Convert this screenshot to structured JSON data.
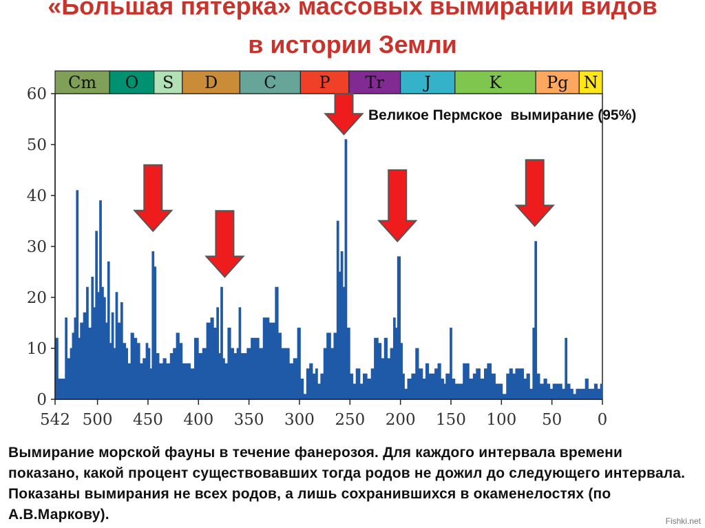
{
  "title_line1": "«Большая пятерка» массовых вымираний видов",
  "title_line2": "в истории Земли",
  "annotation": "Великое Пермское  вымирание (95%)",
  "caption": "Вымирание морской фауны в течение фанерозоя. Для каждого интервала времени показано, какой процент существовавших тогда родов не дожил до следующего интервала. Показаны вымирания не всех родов, а лишь сохранившихся в окаменелостях (по А.В.Маркову).",
  "watermark": "Fishki.net",
  "colors": {
    "title": "#c8342c",
    "bars": "#1f5aa8",
    "arrow": "#ee1c1c",
    "arrow_edge": "#555555"
  },
  "chart_data": {
    "type": "area",
    "x_reversed": true,
    "xlim": [
      542,
      0
    ],
    "ylim": [
      0,
      60
    ],
    "x_ticks": [
      542,
      500,
      450,
      400,
      350,
      300,
      250,
      200,
      150,
      100,
      50,
      0
    ],
    "y_ticks": [
      0,
      10,
      20,
      30,
      40,
      50,
      60
    ],
    "periods": [
      {
        "label": "Cm",
        "start": 542,
        "end": 488,
        "color": "#7fa056"
      },
      {
        "label": "O",
        "start": 488,
        "end": 444,
        "color": "#009270"
      },
      {
        "label": "S",
        "start": 444,
        "end": 416,
        "color": "#b3e1b6"
      },
      {
        "label": "D",
        "start": 416,
        "end": 359,
        "color": "#cb8c37"
      },
      {
        "label": "C",
        "start": 359,
        "end": 299,
        "color": "#67a599"
      },
      {
        "label": "P",
        "start": 299,
        "end": 251,
        "color": "#f04028"
      },
      {
        "label": "Tr",
        "start": 251,
        "end": 200,
        "color": "#812b92"
      },
      {
        "label": "J",
        "start": 200,
        "end": 146,
        "color": "#34b2c9"
      },
      {
        "label": "K",
        "start": 146,
        "end": 66,
        "color": "#7fc64e"
      },
      {
        "label": "Pg",
        "start": 66,
        "end": 23,
        "color": "#fda75f"
      },
      {
        "label": "N",
        "start": 23,
        "end": 0,
        "color": "#ffe619"
      }
    ],
    "series": [
      {
        "values": [
          [
            542,
            12
          ],
          [
            539,
            4
          ],
          [
            534,
            4
          ],
          [
            532,
            16
          ],
          [
            530,
            8
          ],
          [
            527,
            10
          ],
          [
            525,
            13
          ],
          [
            523,
            16
          ],
          [
            521,
            41
          ],
          [
            519,
            12
          ],
          [
            517,
            15
          ],
          [
            514,
            17
          ],
          [
            511,
            22
          ],
          [
            509,
            14
          ],
          [
            506,
            24
          ],
          [
            504,
            18
          ],
          [
            502,
            33
          ],
          [
            500,
            21
          ],
          [
            498,
            39
          ],
          [
            496,
            22
          ],
          [
            494,
            20
          ],
          [
            492,
            15
          ],
          [
            490,
            27
          ],
          [
            488,
            11
          ],
          [
            486,
            17
          ],
          [
            484,
            10
          ],
          [
            482,
            21
          ],
          [
            480,
            15
          ],
          [
            477,
            19
          ],
          [
            475,
            11
          ],
          [
            472,
            10
          ],
          [
            470,
            7
          ],
          [
            467,
            13
          ],
          [
            464,
            12
          ],
          [
            461,
            11
          ],
          [
            458,
            7
          ],
          [
            455,
            8
          ],
          [
            452,
            11
          ],
          [
            450,
            10
          ],
          [
            448,
            6
          ],
          [
            446,
            29
          ],
          [
            444,
            26
          ],
          [
            442,
            9
          ],
          [
            439,
            7
          ],
          [
            435,
            8
          ],
          [
            432,
            7
          ],
          [
            428,
            9
          ],
          [
            425,
            10
          ],
          [
            422,
            13
          ],
          [
            419,
            11
          ],
          [
            416,
            7
          ],
          [
            412,
            7
          ],
          [
            408,
            6
          ],
          [
            404,
            12
          ],
          [
            400,
            9
          ],
          [
            396,
            10
          ],
          [
            392,
            15
          ],
          [
            388,
            16
          ],
          [
            385,
            14
          ],
          [
            382,
            18
          ],
          [
            380,
            9
          ],
          [
            378,
            22
          ],
          [
            376,
            8
          ],
          [
            374,
            7
          ],
          [
            371,
            14
          ],
          [
            368,
            10
          ],
          [
            365,
            9
          ],
          [
            362,
            10
          ],
          [
            360,
            18
          ],
          [
            358,
            9
          ],
          [
            355,
            9
          ],
          [
            352,
            10
          ],
          [
            348,
            12
          ],
          [
            344,
            12
          ],
          [
            340,
            10
          ],
          [
            336,
            16
          ],
          [
            333,
            16
          ],
          [
            330,
            15
          ],
          [
            327,
            15
          ],
          [
            324,
            22
          ],
          [
            321,
            13
          ],
          [
            318,
            10
          ],
          [
            314,
            10
          ],
          [
            310,
            7
          ],
          [
            306,
            8
          ],
          [
            302,
            14
          ],
          [
            299,
            4
          ],
          [
            296,
            1
          ],
          [
            293,
            6
          ],
          [
            290,
            7
          ],
          [
            287,
            5
          ],
          [
            284,
            6
          ],
          [
            282,
            3
          ],
          [
            279,
            5
          ],
          [
            276,
            10
          ],
          [
            273,
            13
          ],
          [
            269,
            10
          ],
          [
            266,
            13
          ],
          [
            263,
            35
          ],
          [
            261,
            25
          ],
          [
            259,
            29
          ],
          [
            257,
            22
          ],
          [
            255,
            51
          ],
          [
            253,
            14
          ],
          [
            250,
            5
          ],
          [
            247,
            3
          ],
          [
            244,
            6
          ],
          [
            240,
            3
          ],
          [
            237,
            5
          ],
          [
            233,
            4
          ],
          [
            229,
            6
          ],
          [
            226,
            12
          ],
          [
            222,
            11
          ],
          [
            219,
            8
          ],
          [
            216,
            12
          ],
          [
            213,
            8
          ],
          [
            210,
            10
          ],
          [
            207,
            16
          ],
          [
            205,
            14
          ],
          [
            203,
            28
          ],
          [
            200,
            11
          ],
          [
            198,
            5
          ],
          [
            196,
            2
          ],
          [
            193,
            4
          ],
          [
            189,
            5
          ],
          [
            185,
            10
          ],
          [
            182,
            6
          ],
          [
            178,
            4
          ],
          [
            175,
            7
          ],
          [
            172,
            5
          ],
          [
            169,
            5
          ],
          [
            166,
            6
          ],
          [
            163,
            7
          ],
          [
            160,
            4
          ],
          [
            157,
            3
          ],
          [
            155,
            5
          ],
          [
            151,
            14
          ],
          [
            149,
            4
          ],
          [
            146,
            3
          ],
          [
            142,
            3
          ],
          [
            138,
            7
          ],
          [
            135,
            7
          ],
          [
            132,
            4
          ],
          [
            128,
            5
          ],
          [
            125,
            6
          ],
          [
            121,
            4
          ],
          [
            117,
            6
          ],
          [
            114,
            7
          ],
          [
            110,
            5
          ],
          [
            106,
            3
          ],
          [
            103,
            3
          ],
          [
            99,
            1
          ],
          [
            95,
            5
          ],
          [
            92,
            6
          ],
          [
            89,
            5
          ],
          [
            86,
            6
          ],
          [
            82,
            6
          ],
          [
            78,
            4
          ],
          [
            75,
            5
          ],
          [
            72,
            2
          ],
          [
            69,
            14
          ],
          [
            67,
            31
          ],
          [
            65,
            5
          ],
          [
            62,
            3
          ],
          [
            58,
            4
          ],
          [
            55,
            3
          ],
          [
            52,
            2
          ],
          [
            49,
            3
          ],
          [
            46,
            3
          ],
          [
            43,
            3
          ],
          [
            40,
            2
          ],
          [
            37,
            12
          ],
          [
            35,
            3
          ],
          [
            32,
            2
          ],
          [
            29,
            1
          ],
          [
            26,
            2
          ],
          [
            23,
            2
          ],
          [
            20,
            2
          ],
          [
            17,
            4
          ],
          [
            14,
            2
          ],
          [
            11,
            2
          ],
          [
            8,
            3
          ],
          [
            5,
            2
          ],
          [
            2,
            3
          ],
          [
            0,
            1
          ]
        ]
      }
    ],
    "arrows": [
      {
        "x": 445,
        "y_top": 46,
        "y_tip": 33
      },
      {
        "x": 374,
        "y_top": 37,
        "y_tip": 24
      },
      {
        "x": 256,
        "y_top": 60,
        "y_tip": 52
      },
      {
        "x": 203,
        "y_top": 45,
        "y_tip": 31
      },
      {
        "x": 67,
        "y_top": 47,
        "y_tip": 34
      }
    ]
  }
}
